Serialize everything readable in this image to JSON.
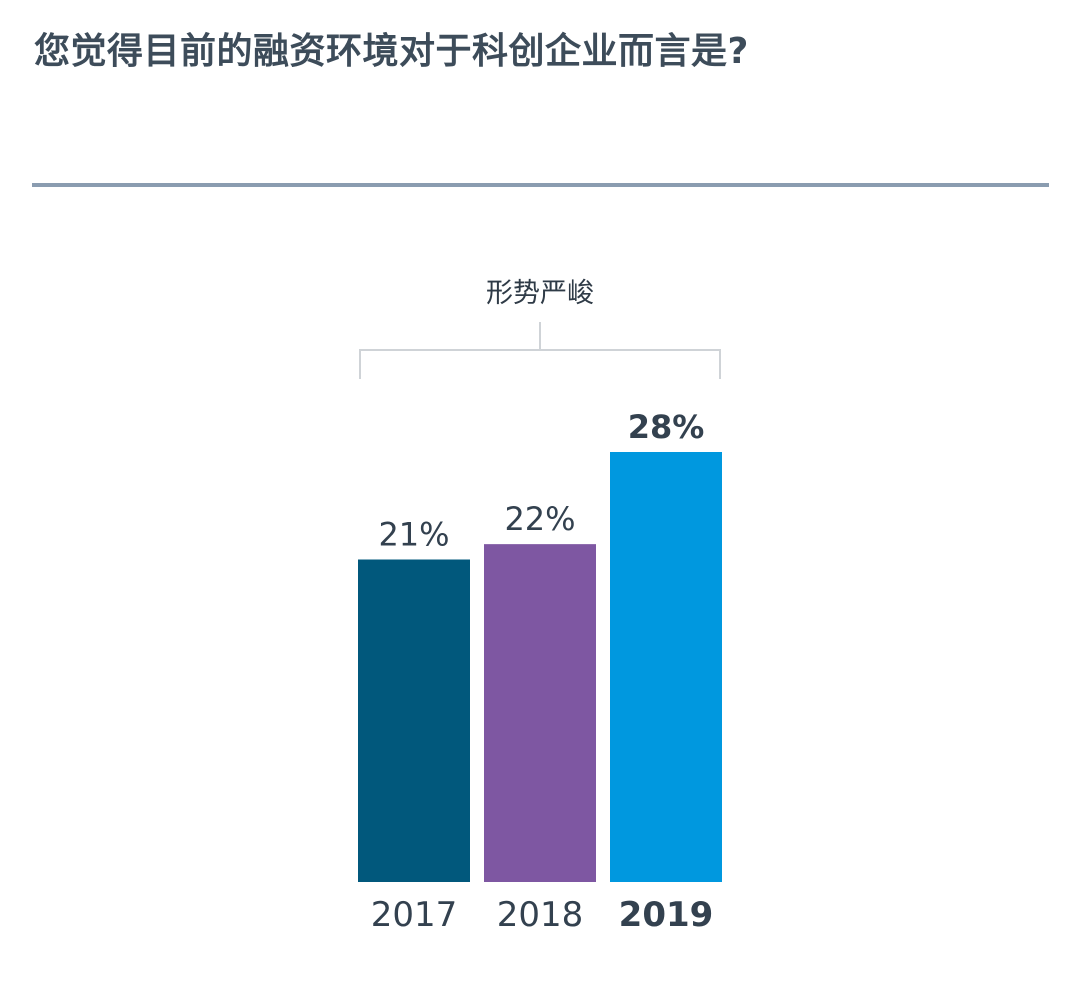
{
  "title": "您觉得目前的融资环境对于科创企业而言是?",
  "chart_data": {
    "type": "bar",
    "title": "您觉得目前的融资环境对于科创企业而言是?",
    "group_label": "形势严峻",
    "categories": [
      "2017",
      "2018",
      "2019"
    ],
    "values": [
      21,
      22,
      28
    ],
    "value_labels": [
      "21%",
      "22%",
      "28%"
    ],
    "highlight_index": 2,
    "colors": [
      "#01587c",
      "#7e57a2",
      "#0098df"
    ],
    "ylim": [
      0,
      28
    ],
    "grid": false,
    "legend": "none"
  }
}
